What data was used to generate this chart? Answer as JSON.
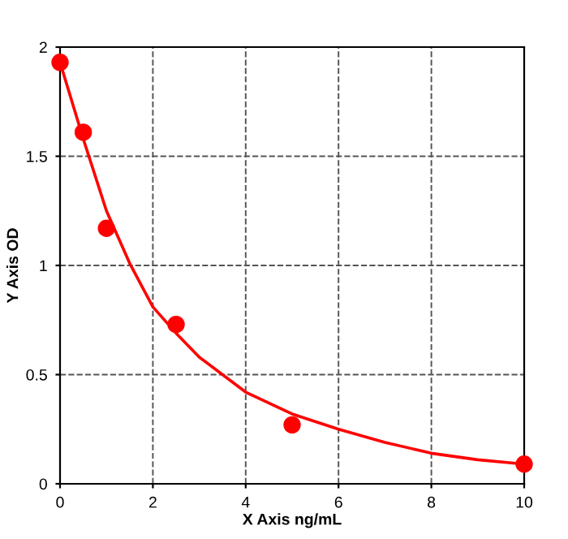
{
  "chart_data": {
    "type": "scatter",
    "xlabel": "X Axis ng/mL",
    "ylabel": "Y Axis OD",
    "xlim": [
      0,
      10
    ],
    "ylim": [
      0,
      2
    ],
    "xticks": [
      0,
      2,
      4,
      6,
      8,
      10
    ],
    "yticks": [
      0,
      0.5,
      1,
      1.5,
      2
    ],
    "grid": true,
    "marker": "circle",
    "series": [
      {
        "type": "line",
        "color": "#ff0000",
        "x": [
          0,
          0.5,
          1,
          1.5,
          2,
          2.5,
          3,
          3.5,
          4,
          5,
          6,
          7,
          8,
          9,
          10
        ],
        "values": [
          1.93,
          1.58,
          1.25,
          1.01,
          0.81,
          0.69,
          0.58,
          0.5,
          0.42,
          0.32,
          0.25,
          0.19,
          0.14,
          0.11,
          0.09
        ],
        "marker": "none",
        "line_style": "solid"
      },
      {
        "color": "#ff0000",
        "x": [
          0,
          0.5,
          1,
          2.5,
          5,
          10
        ],
        "values": [
          1.93,
          1.61,
          1.17,
          0.73,
          0.27,
          0.09
        ]
      }
    ]
  }
}
